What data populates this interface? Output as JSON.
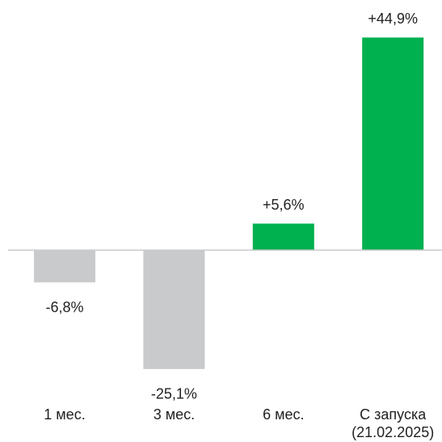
{
  "chart_data": {
    "type": "bar",
    "categories": [
      "1 мес.",
      "3 мес.",
      "6 мес.",
      "С запуска\n(21.02.2025)"
    ],
    "values": [
      -6.8,
      -25.1,
      5.6,
      44.9
    ],
    "value_labels": [
      "-6,8%",
      "-25,1%",
      "+5,6%",
      "+44,9%"
    ],
    "colors": [
      "#c8cacc",
      "#c8cacc",
      "#00b14f",
      "#00b14f"
    ]
  }
}
